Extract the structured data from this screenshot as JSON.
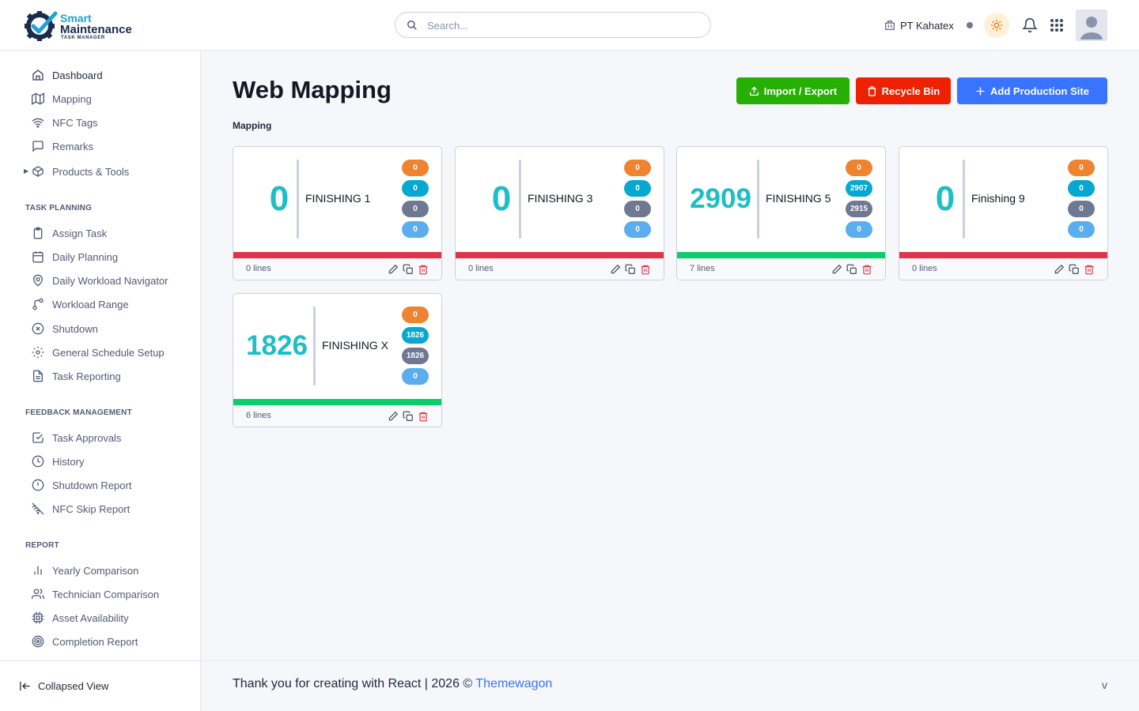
{
  "brand": {
    "line1": "Smart",
    "line2": "Maintenance",
    "line3": "TASK MANAGER"
  },
  "search": {
    "placeholder": "Search..."
  },
  "header": {
    "company": "PT Kahatex"
  },
  "sidebar": {
    "items": [
      {
        "label": "Dashboard",
        "icon": "home-icon"
      },
      {
        "label": "Mapping",
        "icon": "map-icon"
      },
      {
        "label": "NFC Tags",
        "icon": "wifi-icon"
      },
      {
        "label": "Remarks",
        "icon": "message-icon"
      },
      {
        "label": "Products & Tools",
        "icon": "box-icon"
      }
    ],
    "sections": [
      {
        "title": "TASK PLANNING",
        "items": [
          {
            "label": "Assign Task",
            "icon": "clipboard-icon"
          },
          {
            "label": "Daily Planning",
            "icon": "calendar-icon"
          },
          {
            "label": "Daily Workload Navigator",
            "icon": "map-pin-icon"
          },
          {
            "label": "Workload Range",
            "icon": "route-icon"
          },
          {
            "label": "Shutdown",
            "icon": "x-circle-icon"
          },
          {
            "label": "General Schedule Setup",
            "icon": "settings-icon"
          },
          {
            "label": "Task Reporting",
            "icon": "file-text-icon"
          }
        ]
      },
      {
        "title": "FEEDBACK MANAGEMENT",
        "items": [
          {
            "label": "Task Approvals",
            "icon": "check-square-icon"
          },
          {
            "label": "History",
            "icon": "clock-icon"
          },
          {
            "label": "Shutdown Report",
            "icon": "alert-circle-icon"
          },
          {
            "label": "NFC Skip Report",
            "icon": "wifi-off-icon"
          }
        ]
      },
      {
        "title": "REPORT",
        "items": [
          {
            "label": "Yearly Comparison",
            "icon": "bar-chart-icon"
          },
          {
            "label": "Technician Comparison",
            "icon": "users-icon"
          },
          {
            "label": "Asset Availability",
            "icon": "cpu-icon"
          },
          {
            "label": "Completion Report",
            "icon": "target-icon"
          }
        ]
      }
    ],
    "collapse_label": "Collapsed View"
  },
  "main": {
    "title": "Web Mapping",
    "breadcrumb": "Mapping",
    "buttons": {
      "import_export": "Import / Export",
      "recycle_bin": "Recycle Bin",
      "add_site": "Add Production Site"
    }
  },
  "cards": [
    {
      "count": "0",
      "name": "FINISHING 1",
      "badges": [
        "0",
        "0",
        "0",
        "0"
      ],
      "lines": "0 lines",
      "status": "red"
    },
    {
      "count": "0",
      "name": "FINISHING 3",
      "badges": [
        "0",
        "0",
        "0",
        "0"
      ],
      "lines": "0 lines",
      "status": "red"
    },
    {
      "count": "2909",
      "name": "FINISHING 5",
      "badges": [
        "0",
        "2907",
        "2915",
        "0"
      ],
      "lines": "7 lines",
      "status": "green"
    },
    {
      "count": "0",
      "name": "Finishing 9",
      "badges": [
        "0",
        "0",
        "0",
        "0"
      ],
      "lines": "0 lines",
      "status": "red"
    },
    {
      "count": "1826",
      "name": "FINISHING X",
      "badges": [
        "0",
        "1826",
        "1826",
        "0"
      ],
      "lines": "6 lines",
      "status": "green"
    }
  ],
  "footer": {
    "text": "Thank you for creating with React | 2026 © ",
    "link": "Themewagon",
    "version": "v"
  },
  "colors": {
    "accent": "#3874ff",
    "count": "#1ebfc4",
    "status_red": "#e0344b",
    "status_green": "#0ccd6b"
  }
}
